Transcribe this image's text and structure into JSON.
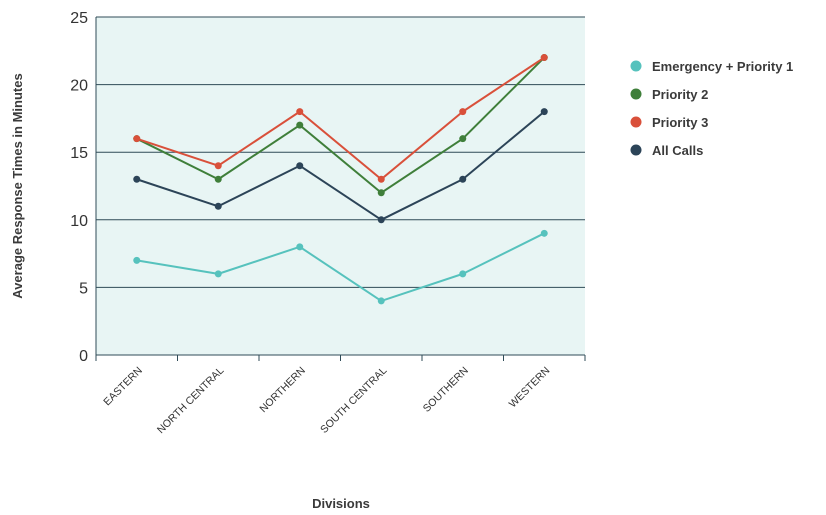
{
  "chart_data": {
    "type": "line",
    "title": "",
    "xlabel": "Divisions",
    "ylabel": "Average Response Times in Minutes",
    "categories": [
      "EASTERN",
      "NORTH CENTRAL",
      "NORTHERN",
      "SOUTH CENTRAL",
      "SOUTHERN",
      "WESTERN"
    ],
    "ylim": [
      0,
      25
    ],
    "yticks": [
      0,
      5,
      10,
      15,
      20,
      25
    ],
    "grid": true,
    "legend_position": "right",
    "plot_background": "#e8f5f4",
    "series": [
      {
        "name": "Emergency + Priority 1",
        "color": "#56c2bd",
        "values": [
          7,
          6,
          8,
          4,
          6,
          9
        ]
      },
      {
        "name": "Priority 2",
        "color": "#3f7f3a",
        "values": [
          16,
          13,
          17,
          12,
          16,
          22
        ]
      },
      {
        "name": "Priority 3",
        "color": "#d9503a",
        "values": [
          16,
          14,
          18,
          13,
          18,
          22
        ]
      },
      {
        "name": "All Calls",
        "color": "#2c4458",
        "values": [
          13,
          11,
          14,
          10,
          13,
          18
        ]
      }
    ]
  }
}
